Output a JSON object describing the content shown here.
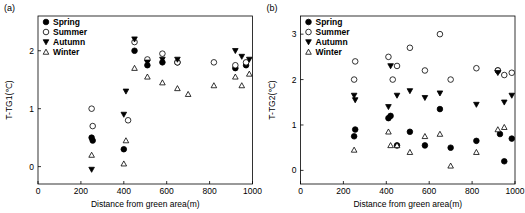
{
  "chart_data": [
    {
      "type": "scatter",
      "title": "(a)",
      "x_label": "Distance from green area(m)",
      "y_label": "T-TG1(℃)",
      "xlim": [
        0,
        1000
      ],
      "xticks": [
        0,
        200,
        400,
        600,
        800,
        1000
      ],
      "ylim": [
        -0.3,
        2.6
      ],
      "yticks": [
        0,
        1,
        2
      ],
      "legend": "upper left",
      "series": [
        {
          "name": "Spring",
          "color": "#000000",
          "marker": "circle",
          "x": [
            250,
            255,
            400,
            450,
            510,
            580,
            650,
            920,
            970
          ],
          "values": [
            0.5,
            0.45,
            0.3,
            2.0,
            1.75,
            1.8,
            1.8,
            1.7,
            1.75
          ]
        },
        {
          "name": "Summer",
          "color": "#000000",
          "marker": "circle-open",
          "x": [
            250,
            255,
            420,
            450,
            510,
            580,
            650,
            820,
            920,
            970
          ],
          "values": [
            1.0,
            0.7,
            0.8,
            2.15,
            1.85,
            1.95,
            1.8,
            1.8,
            1.75,
            1.8
          ]
        },
        {
          "name": "Autumn",
          "color": "#000000",
          "marker": "triangle-down",
          "x": [
            250,
            400,
            410,
            450,
            510,
            580,
            650,
            920,
            950,
            985
          ],
          "values": [
            -0.05,
            0.9,
            1.3,
            2.2,
            1.8,
            1.85,
            1.85,
            2.0,
            1.9,
            1.85
          ]
        },
        {
          "name": "Winter",
          "color": "#000000",
          "marker": "triangle-open",
          "x": [
            250,
            400,
            410,
            450,
            510,
            580,
            650,
            700,
            820,
            920,
            950,
            985
          ],
          "values": [
            0.2,
            0.05,
            0.45,
            1.7,
            1.55,
            1.45,
            1.35,
            1.25,
            1.4,
            1.55,
            1.4,
            1.6
          ]
        }
      ]
    },
    {
      "type": "scatter",
      "title": "(b)",
      "x_label": "Distance from green area(m)",
      "y_label": "T-TG2(℃)",
      "xlim": [
        0,
        1000
      ],
      "xticks": [
        0,
        200,
        400,
        600,
        800,
        1000
      ],
      "ylim": [
        -0.3,
        3.4
      ],
      "yticks": [
        0,
        1,
        2,
        3
      ],
      "legend": "upper left",
      "series": [
        {
          "name": "Spring",
          "color": "#000000",
          "marker": "circle",
          "x": [
            250,
            255,
            410,
            420,
            450,
            510,
            580,
            650,
            700,
            820,
            920,
            930,
            950,
            985
          ],
          "values": [
            0.75,
            0.9,
            1.15,
            1.2,
            0.55,
            0.85,
            0.55,
            1.35,
            0.5,
            0.65,
            2.2,
            0.8,
            0.2,
            0.7
          ]
        },
        {
          "name": "Summer",
          "color": "#000000",
          "marker": "circle-open",
          "x": [
            250,
            255,
            410,
            430,
            450,
            510,
            580,
            650,
            700,
            820,
            920,
            950,
            985
          ],
          "values": [
            2.0,
            2.4,
            2.5,
            2.0,
            2.3,
            2.7,
            2.2,
            3.0,
            2.0,
            2.25,
            2.2,
            2.1,
            2.15
          ]
        },
        {
          "name": "Autumn",
          "color": "#000000",
          "marker": "triangle-down",
          "x": [
            250,
            255,
            410,
            420,
            450,
            510,
            580,
            650,
            820,
            920,
            950,
            985
          ],
          "values": [
            1.65,
            1.55,
            1.4,
            2.3,
            1.65,
            1.75,
            1.6,
            1.7,
            1.45,
            2.15,
            1.5,
            1.65
          ]
        },
        {
          "name": "Winter",
          "color": "#000000",
          "marker": "triangle-open",
          "x": [
            250,
            410,
            420,
            450,
            510,
            580,
            650,
            700,
            820,
            920,
            950
          ],
          "values": [
            0.45,
            0.85,
            0.55,
            0.55,
            0.4,
            0.75,
            0.8,
            0.1,
            0.4,
            0.9,
            0.95
          ]
        }
      ]
    }
  ]
}
